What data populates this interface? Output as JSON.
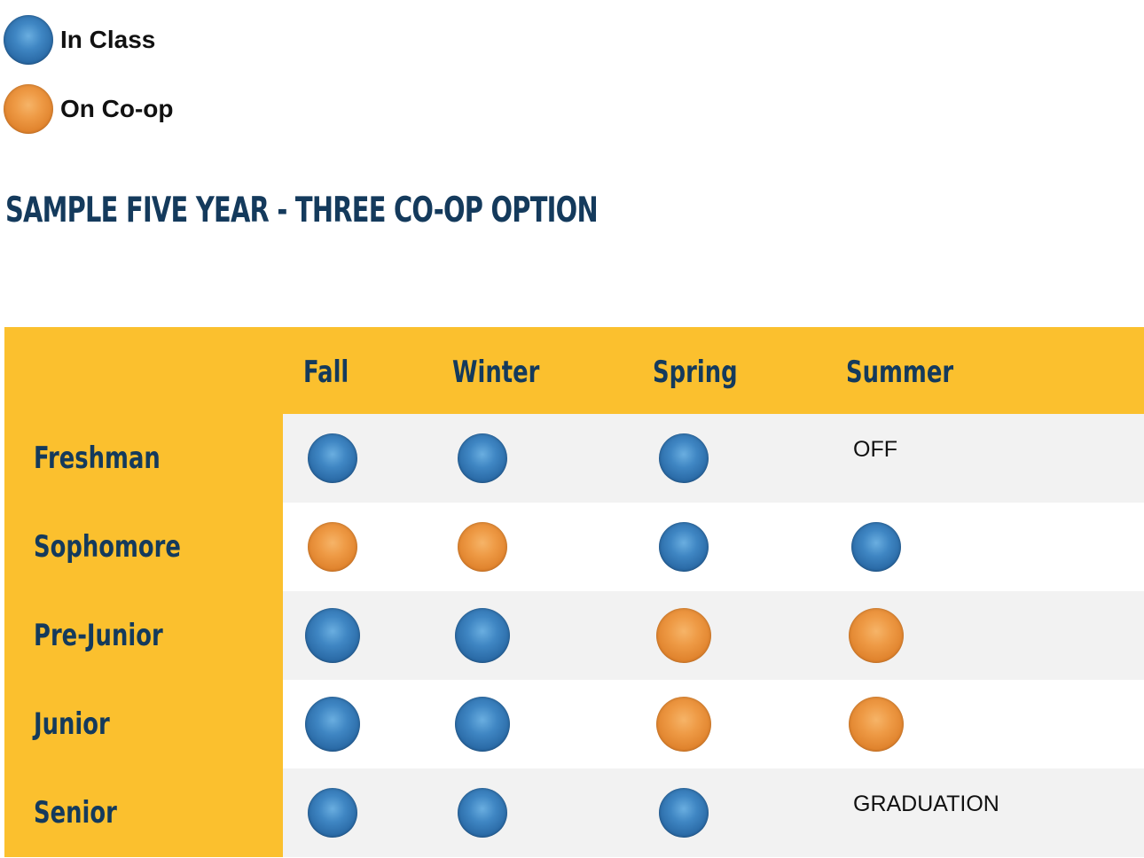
{
  "legend": {
    "in_class": {
      "label": "In Class",
      "icon": "blue-sphere",
      "color": "#2f78b6"
    },
    "on_coop": {
      "label": "On Co-op",
      "icon": "orange-sphere",
      "color": "#e8903a"
    }
  },
  "title": "SAMPLE FIVE YEAR - THREE CO-OP OPTION",
  "colors": {
    "header_bg": "#fbc02e",
    "heading_text": "#143a5c",
    "row_shade": "#f2f2f2"
  },
  "schedule": {
    "seasons": [
      "Fall",
      "Winter",
      "Spring",
      "Summer"
    ],
    "rows": [
      {
        "year": "Freshman",
        "cells": [
          "class",
          "class",
          "class",
          "OFF"
        ]
      },
      {
        "year": "Sophomore",
        "cells": [
          "coop",
          "coop",
          "class",
          "class"
        ]
      },
      {
        "year": "Pre-Junior",
        "cells": [
          "class",
          "class",
          "coop",
          "coop"
        ]
      },
      {
        "year": "Junior",
        "cells": [
          "class",
          "class",
          "coop",
          "coop"
        ]
      },
      {
        "year": "Senior",
        "cells": [
          "class",
          "class",
          "class",
          "GRADUATION"
        ]
      }
    ]
  }
}
